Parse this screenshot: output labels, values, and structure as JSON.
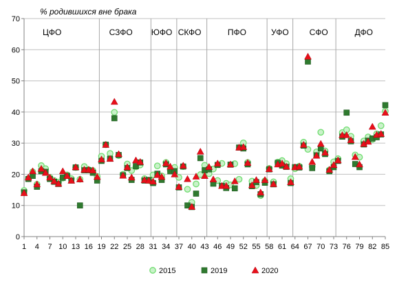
{
  "chart_data": {
    "type": "scatter",
    "title": "",
    "ylabel": "% родившихся вне брака",
    "xlabel": "",
    "ylim": [
      0,
      70
    ],
    "yticks": [
      0,
      10,
      20,
      30,
      40,
      50,
      60,
      70
    ],
    "xlim": [
      1,
      85
    ],
    "xticks": [
      1,
      4,
      7,
      10,
      13,
      16,
      19,
      22,
      25,
      28,
      31,
      34,
      37,
      40,
      43,
      46,
      49,
      52,
      55,
      58,
      61,
      64,
      67,
      70,
      73,
      76,
      79,
      82,
      85
    ],
    "grid": "horizontal",
    "legend_position": "bottom",
    "regions": [
      {
        "name": "ЦФО",
        "label_x": 7.5
      },
      {
        "name": "СЗФО",
        "label_x": 23.5
      },
      {
        "name": "ЮФО",
        "label_x": 33
      },
      {
        "name": "СКФО",
        "label_x": 39.5
      },
      {
        "name": "ПФО",
        "label_x": 50.5
      },
      {
        "name": "УФО",
        "label_x": 60.5
      },
      {
        "name": "СФО",
        "label_x": 69.5
      },
      {
        "name": "ДФО",
        "label_x": 80
      }
    ],
    "region_boundaries": [
      18.5,
      30.5,
      36.5,
      43.5,
      57.5,
      63.5,
      73.5
    ],
    "x": [
      1,
      2,
      3,
      4,
      5,
      6,
      7,
      8,
      9,
      10,
      11,
      12,
      13,
      14,
      15,
      16,
      17,
      18,
      19,
      20,
      21,
      22,
      23,
      24,
      25,
      26,
      27,
      28,
      29,
      30,
      31,
      32,
      33,
      34,
      35,
      36,
      37,
      38,
      39,
      40,
      41,
      42,
      43,
      44,
      45,
      46,
      47,
      48,
      49,
      50,
      51,
      52,
      53,
      54,
      55,
      56,
      57,
      58,
      59,
      60,
      61,
      62,
      63,
      64,
      65,
      66,
      67,
      68,
      69,
      70,
      71,
      72,
      73,
      74,
      75,
      76,
      77,
      78,
      79,
      80,
      81,
      82,
      83,
      84,
      85
    ],
    "series": [
      {
        "name": "2015",
        "color": "#6fdc6f",
        "marker": "circle",
        "values": [
          14.8,
          18.6,
          20.8,
          16.8,
          22.8,
          21.8,
          19.0,
          18.0,
          17.5,
          18.8,
          19.8,
          18.6,
          22.2,
          18.4,
          22.5,
          21.5,
          21.2,
          19.3,
          25.8,
          29.5,
          26.7,
          39.9,
          26.0,
          20.0,
          23.3,
          21.2,
          22.4,
          23.0,
          18.6,
          18.0,
          19.8,
          22.7,
          19.5,
          23.8,
          21.3,
          22.2,
          19.0,
          22.5,
          15.2,
          11.0,
          16.9,
          19.9,
          22.9,
          20.2,
          21.7,
          18.0,
          23.5,
          17.1,
          16.6,
          23.4,
          18.4,
          30.1,
          23.8,
          17.8,
          16.4,
          13.2,
          17.9,
          21.9,
          17.6,
          23.9,
          24.4,
          23.4,
          18.6,
          21.8,
          22.6,
          30.3,
          28.0,
          22.5,
          27.2,
          33.5,
          27.5,
          21.4,
          24.0,
          25.0,
          33.4,
          34.3,
          32.2,
          26.2,
          25.5,
          30.7,
          32.0,
          31.2,
          33.0,
          35.6,
          40.3
        ]
      },
      {
        "name": "2019",
        "color": "#2f7a2f",
        "marker": "square",
        "values": [
          14.2,
          18.5,
          19.5,
          16.0,
          21.0,
          20.8,
          18.5,
          17.6,
          16.9,
          18.9,
          19.5,
          18.0,
          22.2,
          10.0,
          21.3,
          21.3,
          20.5,
          18.0,
          24.3,
          29.5,
          25.0,
          38.0,
          26.2,
          19.7,
          22.0,
          18.2,
          22.6,
          23.8,
          18.0,
          18.2,
          17.2,
          20.2,
          18.2,
          23.2,
          21.0,
          21.0,
          15.8,
          22.5,
          10.0,
          9.5,
          13.8,
          25.2,
          21.3,
          21.6,
          17.0,
          23.0,
          16.3,
          15.6,
          23.1,
          15.5,
          28.6,
          28.3,
          23.2,
          16.2,
          17.5,
          13.6,
          17.3,
          21.6,
          16.8,
          23.7,
          22.8,
          22.4,
          17.2,
          22.3,
          22.2,
          29.2,
          56.2,
          22.0,
          26.1,
          28.3,
          26.5,
          21.0,
          22.3,
          24.3,
          32.1,
          39.8,
          30.6,
          23.3,
          22.3,
          29.6,
          30.8,
          31.5,
          31.9,
          32.8,
          42.2
        ]
      },
      {
        "name": "2020",
        "color": "#e8101a",
        "marker": "triangle",
        "values": [
          14.0,
          19.0,
          21.0,
          16.8,
          21.8,
          20.5,
          19.0,
          17.8,
          17.0,
          21.0,
          19.5,
          18.0,
          22.3,
          18.4,
          21.5,
          21.5,
          21.3,
          19.2,
          24.8,
          29.5,
          25.0,
          43.3,
          26.5,
          19.6,
          22.3,
          19.0,
          24.5,
          24.0,
          18.2,
          18.0,
          17.7,
          19.8,
          19.2,
          23.6,
          22.5,
          20.0,
          16.0,
          22.8,
          18.5,
          9.6,
          19.3,
          27.3,
          19.5,
          22.4,
          18.4,
          23.5,
          16.3,
          16.3,
          23.2,
          17.8,
          28.6,
          28.8,
          23.7,
          16.5,
          18.2,
          14.2,
          18.2,
          21.7,
          16.9,
          23.2,
          23.5,
          22.5,
          17.5,
          22.3,
          22.5,
          29.5,
          57.8,
          24.0,
          26.0,
          29.8,
          27.0,
          21.5,
          23.0,
          24.5,
          32.6,
          32.6,
          31.0,
          25.6,
          23.2,
          29.8,
          30.5,
          35.3,
          32.7,
          33.0,
          39.8
        ]
      }
    ]
  }
}
